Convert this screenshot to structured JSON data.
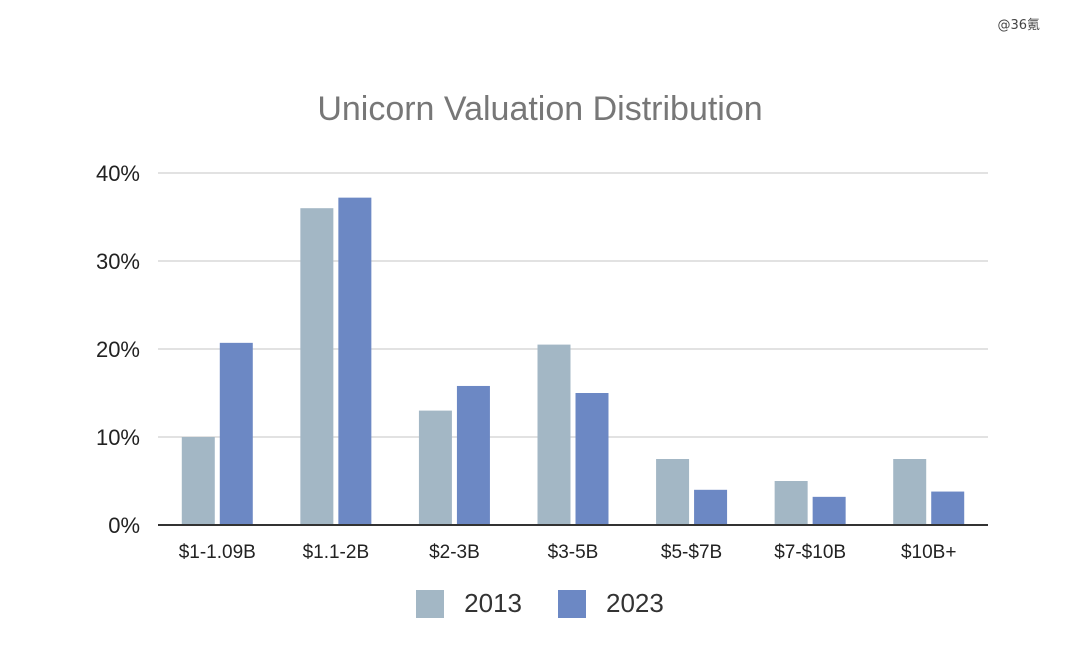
{
  "watermark": "@36氪",
  "colors": {
    "s2013": "#a3b7c5",
    "s2023": "#6c88c4",
    "grid": "#d9d9d9",
    "axis": "#333333"
  },
  "chart_data": {
    "type": "bar",
    "title": "Unicorn Valuation Distribution",
    "categories": [
      "$1-1.09B",
      "$1.1-2B",
      "$2-3B",
      "$3-5B",
      "$5-$7B",
      "$7-$10B",
      "$10B+"
    ],
    "series": [
      {
        "name": "2013",
        "values": [
          10,
          36,
          13,
          20.5,
          7.5,
          5,
          7.5
        ]
      },
      {
        "name": "2023",
        "values": [
          20.7,
          37.2,
          15.8,
          15,
          4,
          3.2,
          3.8
        ]
      }
    ],
    "yticks": [
      "0%",
      "10%",
      "20%",
      "30%",
      "40%"
    ],
    "ylim": [
      0,
      40
    ],
    "legend": "bottom",
    "grid": true
  }
}
